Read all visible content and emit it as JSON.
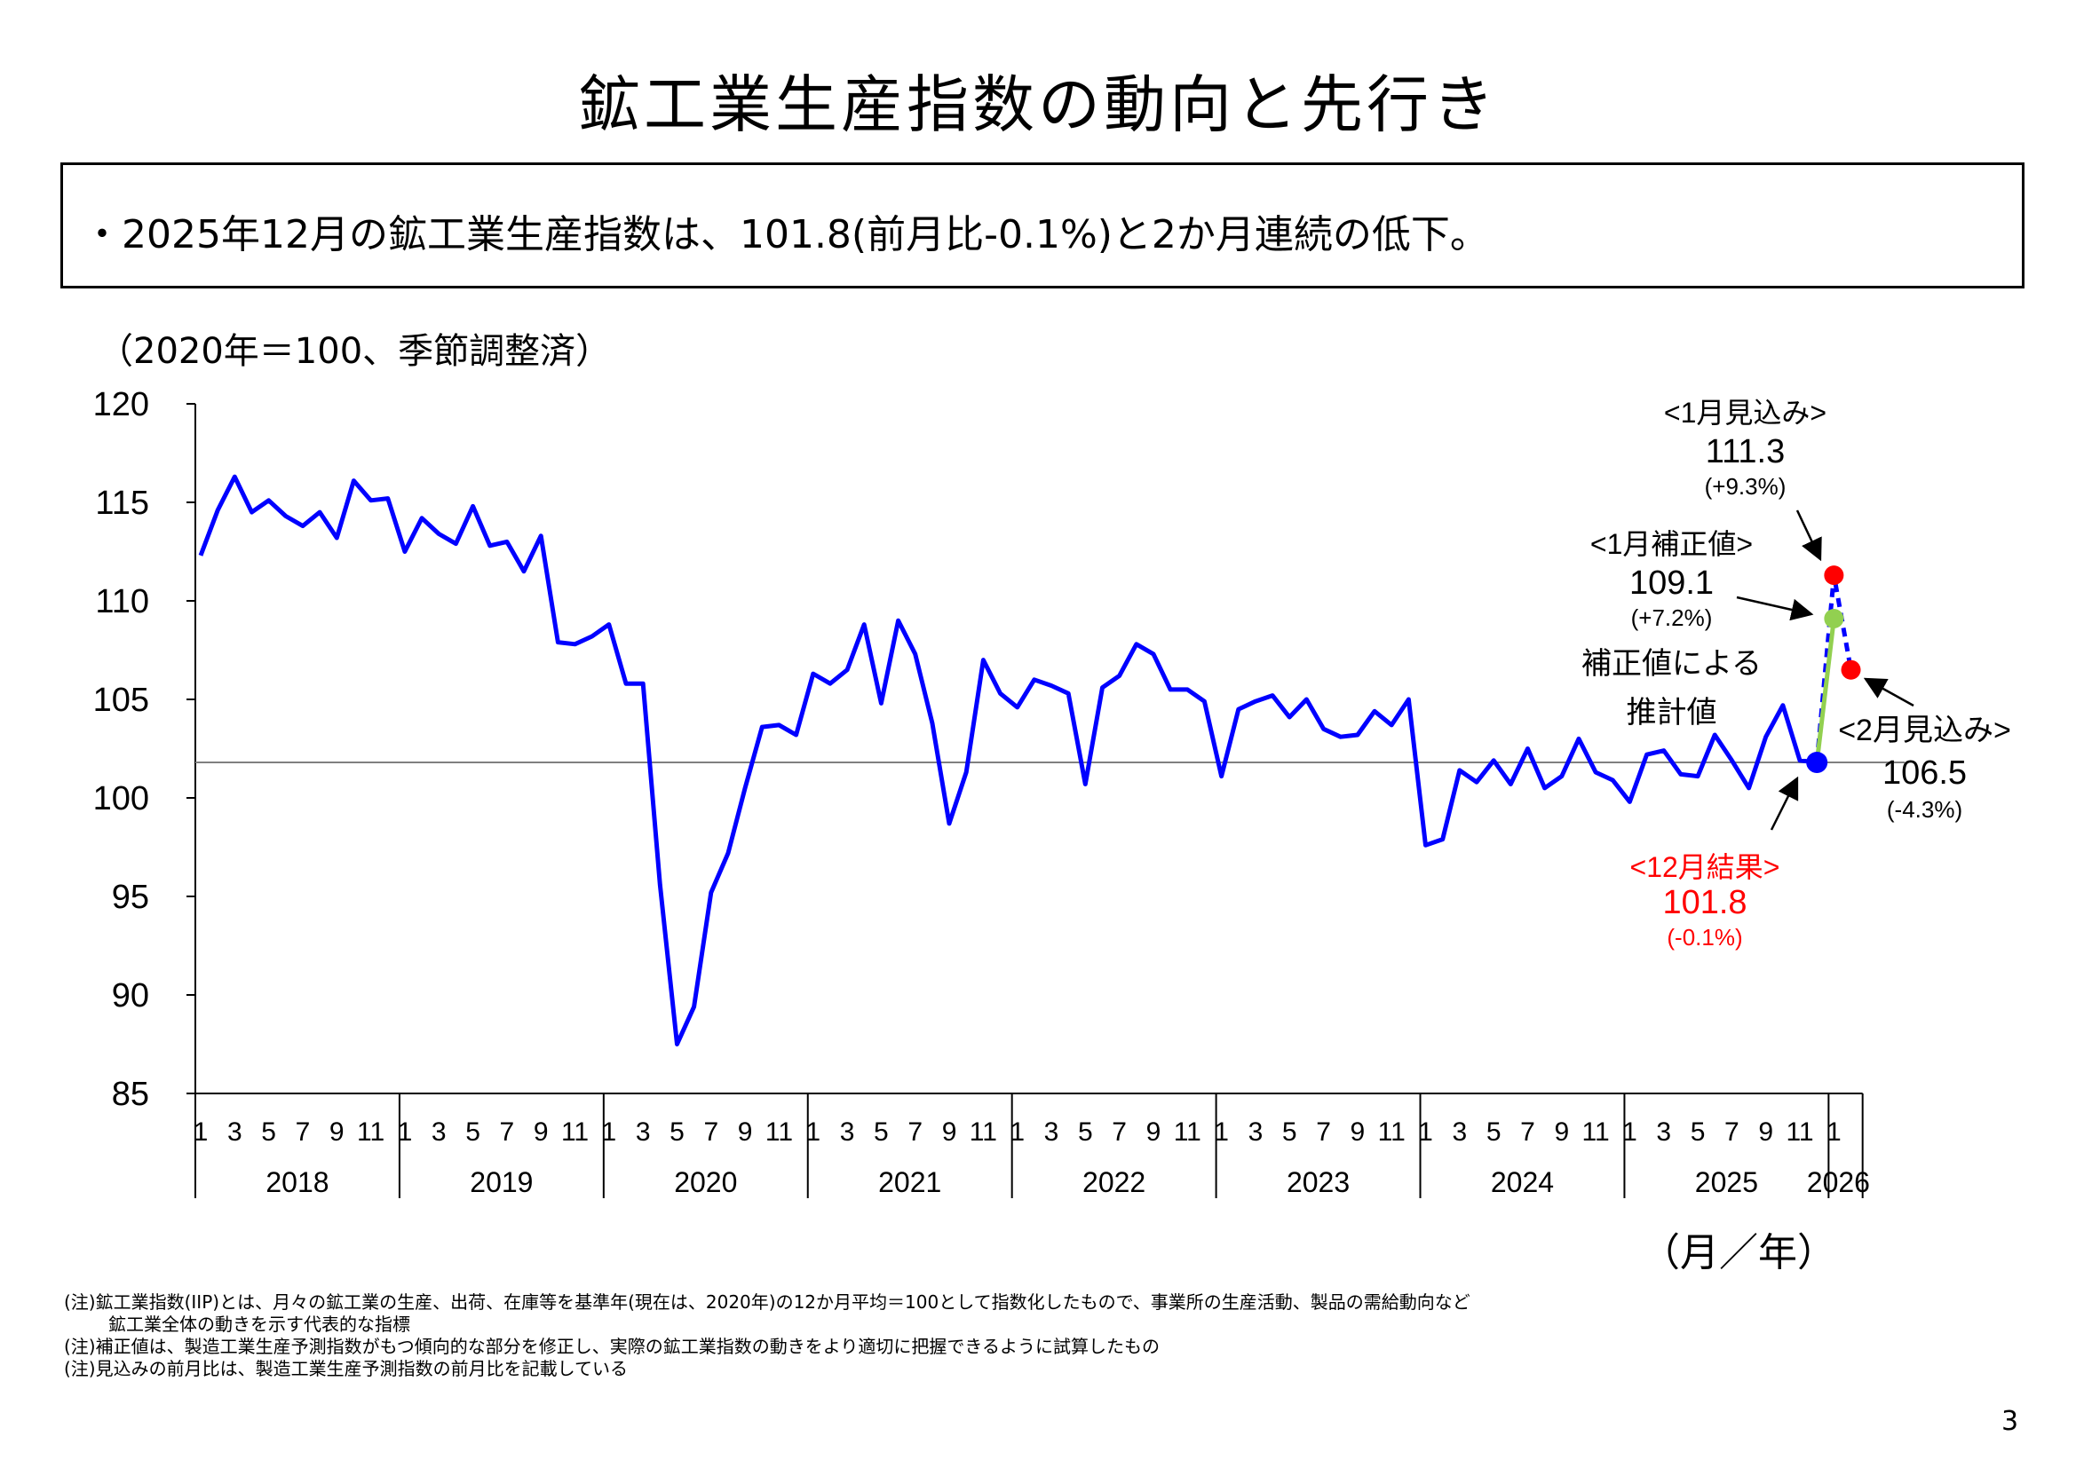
{
  "title": "鉱工業生産指数の動向と先行き",
  "summary": "・2025年12月の鉱工業生産指数は、101.8(前月比-0.1%)と2か月連続の低下。",
  "unit_label": "（2020年＝100、季節調整済）",
  "x_unit_label": "（月／年）",
  "annotations": {
    "jan_forecast": {
      "label": "<1月見込み>",
      "value": "111.3",
      "change": "(+9.3%)"
    },
    "jan_corrected": {
      "label": "<1月補正値>",
      "value": "109.1",
      "change": "(+7.2%)",
      "note1": "補正値による",
      "note2": "推計値"
    },
    "feb_forecast": {
      "label": "<2月見込み>",
      "value": "106.5",
      "change": "(-4.3%)"
    },
    "dec_result": {
      "label": "<12月結果>",
      "value": "101.8",
      "change": "(-0.1%)"
    }
  },
  "notes": [
    "(注)鉱工業指数(IIP)とは、月々の鉱工業の生産、出荷、在庫等を基準年(現在は、2020年)の12か月平均＝100として指数化したもので、事業所の生産活動、製品の需給動向など",
    "鉱工業全体の動きを示す代表的な指標",
    "(注)補正値は、製造工業生産予測指数がもつ傾向的な部分を修正し、実際の鉱工業指数の動きをより適切に把握できるように試算したもの",
    "(注)見込みの前月比は、製造工業生産予測指数の前月比を記載している"
  ],
  "page_number": "3",
  "colors": {
    "series": "#0000ff",
    "corrected": "#92d050",
    "forecast": "#ff0000",
    "reference": "#808080"
  },
  "chart_data": {
    "type": "line",
    "title": "鉱工業生産指数の動向と先行き",
    "ylabel": "（2020年＝100、季節調整済）",
    "xlabel": "（月／年）",
    "ylim": [
      85,
      120
    ],
    "yticks": [
      85,
      90,
      95,
      100,
      105,
      110,
      115,
      120
    ],
    "years": [
      "2018",
      "2019",
      "2020",
      "2021",
      "2022",
      "2023",
      "2024",
      "2025",
      "2026"
    ],
    "month_ticks": [
      "1",
      "3",
      "5",
      "7",
      "9",
      "11"
    ],
    "start": "2018-01",
    "series": [
      {
        "name": "鉱工業生産指数",
        "values": [
          112.3,
          114.6,
          116.3,
          114.5,
          115.1,
          114.3,
          113.8,
          114.5,
          113.2,
          116.1,
          115.1,
          115.2,
          112.5,
          114.2,
          113.4,
          112.9,
          114.8,
          112.8,
          113.0,
          111.5,
          113.3,
          107.9,
          107.8,
          108.2,
          108.8,
          105.8,
          105.8,
          95.6,
          87.5,
          89.4,
          95.2,
          97.2,
          100.5,
          103.6,
          103.7,
          103.2,
          106.3,
          105.8,
          106.5,
          108.8,
          104.8,
          109.0,
          107.3,
          103.8,
          98.7,
          101.3,
          107.0,
          105.3,
          104.6,
          106.0,
          105.7,
          105.3,
          100.7,
          105.6,
          106.2,
          107.8,
          107.3,
          105.5,
          105.5,
          104.9,
          101.1,
          104.5,
          104.9,
          105.2,
          104.1,
          105.0,
          103.5,
          103.1,
          103.2,
          104.4,
          103.7,
          105.0,
          97.6,
          97.9,
          101.4,
          100.8,
          101.9,
          100.7,
          102.5,
          100.5,
          101.1,
          103.0,
          101.3,
          100.9,
          99.8,
          102.2,
          102.4,
          101.2,
          101.1,
          103.2,
          101.9,
          100.5,
          103.1,
          104.7,
          101.9,
          101.8
        ]
      },
      {
        "name": "補正値による推計値",
        "points": [
          [
            "2025-12",
            101.8
          ],
          [
            "2026-01",
            109.1
          ]
        ]
      },
      {
        "name": "見込み",
        "points": [
          [
            "2025-12",
            101.8
          ],
          [
            "2026-01",
            111.3
          ],
          [
            "2026-02",
            106.5
          ]
        ]
      }
    ],
    "reference_line": 101.8,
    "data_labels": {
      "dec_2025": 101.8,
      "jan_2026_forecast": 111.3,
      "jan_2026_corrected": 109.1,
      "feb_2026_forecast": 106.5
    }
  }
}
